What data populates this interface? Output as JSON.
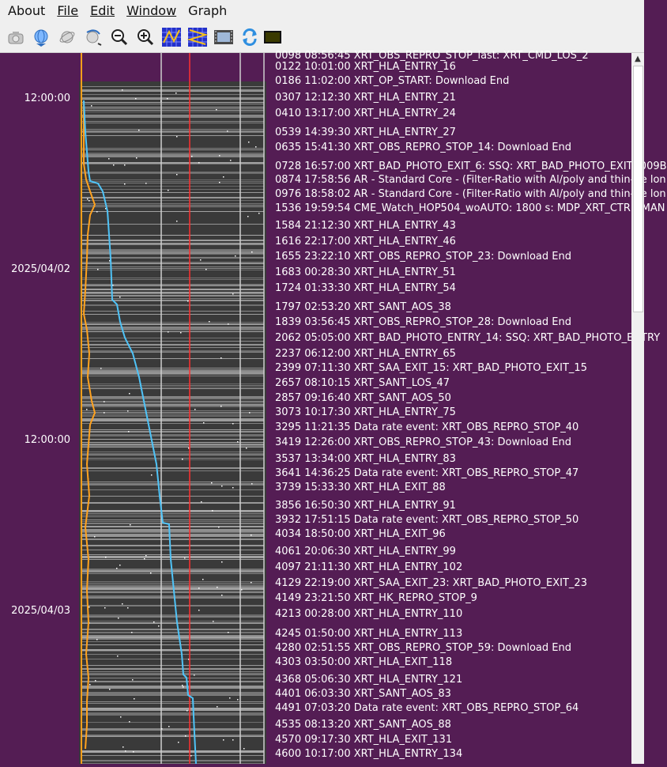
{
  "menubar": {
    "items": [
      "About",
      "File",
      "Edit",
      "Window",
      "Graph"
    ],
    "underline": [
      null,
      0,
      0,
      0,
      null
    ]
  },
  "toolbar": {
    "buttons": [
      {
        "name": "camera-icon"
      },
      {
        "name": "globe-down-icon"
      },
      {
        "name": "globe-tilt-icon"
      },
      {
        "name": "globe-arrow-icon"
      },
      {
        "name": "zoom-out-icon"
      },
      {
        "name": "zoom-in-icon"
      },
      {
        "name": "grid-fit-icon"
      },
      {
        "name": "grid-zigzag-icon"
      },
      {
        "name": "film-icon"
      },
      {
        "name": "refresh-icon"
      },
      {
        "name": "color-box-icon"
      }
    ]
  },
  "time_labels": [
    "12:00:00",
    "2025/04/02",
    "12:00:00",
    "2025/04/03"
  ],
  "events": [
    "0098 08:56:45 XRT_OBS_REPRO_STOP_last: XRT_CMD_LOS_2",
    "0122 10:01:00 XRT_HLA_ENTRY_16",
    "0186 11:02:00 XRT_OP_START: Download End",
    "0307 12:12:30 XRT_HLA_ENTRY_21",
    "0410 13:17:00 XRT_HLA_ENTRY_24",
    "0539 14:39:30 XRT_HLA_ENTRY_27",
    "0635 15:41:30 XRT_OBS_REPRO_STOP_14: Download End",
    "0728 16:57:00 XRT_BAD_PHOTO_EXIT_6: SSQ: XRT_BAD_PHOTO_EXIT (009B",
    "0874 17:58:56 AR - Standard Core - (Filter-Ratio with Al/poly and thin-Be lon",
    "0976 18:58:02 AR - Standard Core - (Filter-Ratio with Al/poly and thin-Be lon",
    "1536 19:59:54 CME_Watch_HOP504_woAUTO: 1800 s: MDP_XRT_CTRL_MAN",
    "1584 21:12:30 XRT_HLA_ENTRY_43",
    "1616 22:17:00 XRT_HLA_ENTRY_46",
    "1655 23:22:10 XRT_OBS_REPRO_STOP_23: Download End",
    "1683 00:28:30 XRT_HLA_ENTRY_51",
    "1724 01:33:30 XRT_HLA_ENTRY_54",
    "1797 02:53:20 XRT_SANT_AOS_38",
    "1839 03:56:45 XRT_OBS_REPRO_STOP_28: Download End",
    "2062 05:05:00 XRT_BAD_PHOTO_ENTRY_14: SSQ: XRT_BAD_PHOTO_ENTRY",
    "2237 06:12:00 XRT_HLA_ENTRY_65",
    "2399 07:11:30 XRT_SAA_EXIT_15: XRT_BAD_PHOTO_EXIT_15",
    "2657 08:10:15 XRT_SANT_LOS_47",
    "2857 09:16:40 XRT_SANT_AOS_50",
    "3073 10:17:30 XRT_HLA_ENTRY_75",
    "3295 11:21:35 Data rate event: XRT_OBS_REPRO_STOP_40",
    "3419 12:26:00 XRT_OBS_REPRO_STOP_43: Download End",
    "3537 13:34:00 XRT_HLA_ENTRY_83",
    "3641 14:36:25 Data rate event: XRT_OBS_REPRO_STOP_47",
    "3739 15:33:30 XRT_HLA_EXIT_88",
    "3856 16:50:30 XRT_HLA_ENTRY_91",
    "3932 17:51:15 Data rate event: XRT_OBS_REPRO_STOP_50",
    "4034 18:50:00 XRT_HLA_EXIT_96",
    "4061 20:06:30 XRT_HLA_ENTRY_99",
    "4097 21:11:30 XRT_HLA_ENTRY_102",
    "4129 22:19:00 XRT_SAA_EXIT_23: XRT_BAD_PHOTO_EXIT_23",
    "4149 23:21:50 XRT_HK_REPRO_STOP_9",
    "4213 00:28:00 XRT_HLA_ENTRY_110",
    "4245 01:50:00 XRT_HLA_ENTRY_113",
    "4280 02:51:55 XRT_OBS_REPRO_STOP_59: Download End",
    "4303 03:50:00 XRT_HLA_EXIT_118",
    "4368 05:06:30 XRT_HLA_ENTRY_121",
    "4401 06:03:30 XRT_SANT_AOS_83",
    "4491 07:03:20 Data rate event: XRT_OBS_REPRO_STOP_64",
    "4535 08:13:20 XRT_SANT_AOS_88",
    "4570 09:17:30 XRT_HLA_EXIT_131",
    "4600 10:17:00 XRT_HLA_ENTRY_134"
  ],
  "colors": {
    "background": "#541d54",
    "strip_dark": "#3a3a3a",
    "strip_light": "#bdbdbd",
    "blue_trace": "#4fc3f7",
    "orange_trace": "#ffa21f",
    "red_marker": "#ff3030",
    "orange_border": "#ff9f1a"
  }
}
